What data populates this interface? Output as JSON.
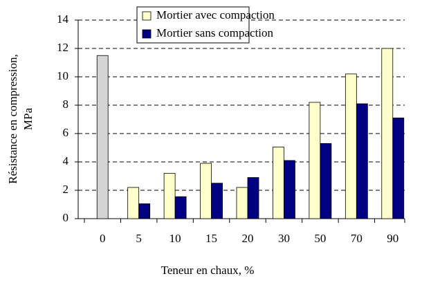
{
  "chart_data": {
    "type": "bar",
    "xlabel": "Teneur en chaux, %",
    "ylabel": [
      "Résistance en compression,",
      "MPa"
    ],
    "categories": [
      "0",
      "5",
      "10",
      "15",
      "20",
      "30",
      "50",
      "70",
      "90"
    ],
    "series": [
      {
        "color": "#d4d4d4",
        "values": [
          11.5,
          null,
          null,
          null,
          null,
          null,
          null,
          null,
          null
        ]
      },
      {
        "name": "Mortier avec compaction",
        "color": "#ffffcc",
        "values": [
          null,
          2.2,
          3.2,
          3.9,
          2.2,
          5.05,
          8.2,
          10.2,
          12.0
        ]
      },
      {
        "name": "Mortier sans compaction",
        "color": "#000080",
        "values": [
          null,
          1.05,
          1.55,
          2.5,
          2.9,
          4.1,
          5.3,
          8.1,
          7.1
        ]
      }
    ],
    "ylim": [
      0,
      14
    ],
    "yticks": [
      0,
      2,
      4,
      6,
      8,
      10,
      12,
      14
    ],
    "grid": true
  }
}
